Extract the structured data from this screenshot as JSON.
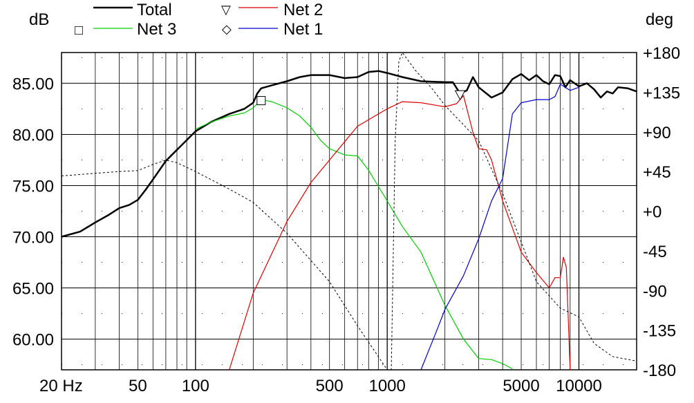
{
  "chart_data": {
    "type": "line",
    "ylabel_left": "dB",
    "ylabel_right": "deg",
    "x_scale": "log",
    "xlim": [
      20,
      20000
    ],
    "ylim_left": [
      57,
      88
    ],
    "ylim_right": [
      -180,
      180
    ],
    "grid": true,
    "legend_position": "top",
    "x_ticks": [
      "20 Hz",
      "50",
      "100",
      "500",
      "1000",
      "5000",
      "10000"
    ],
    "x_tick_values": [
      20,
      50,
      100,
      500,
      1000,
      5000,
      10000
    ],
    "y_ticks_left": [
      "85.00",
      "80.00",
      "75.00",
      "70.00",
      "65.00",
      "60.00"
    ],
    "y_tick_values_left": [
      85,
      80,
      75,
      70,
      65,
      60
    ],
    "y_ticks_right": [
      "+180",
      "+135",
      "+90",
      "+45",
      "+0",
      "-45",
      "-90",
      "-135",
      "-180"
    ],
    "y_tick_values_right": [
      180,
      135,
      90,
      45,
      0,
      -45,
      -90,
      -135,
      -180
    ],
    "series": [
      {
        "name": "Total",
        "axis": "left",
        "color": "#000000",
        "width": 2.5,
        "legend_marker": "",
        "x": [
          20,
          25,
          30,
          35,
          40,
          45,
          50,
          55,
          60,
          70,
          80,
          100,
          120,
          150,
          180,
          200,
          210,
          220,
          250,
          300,
          350,
          400,
          500,
          600,
          700,
          800,
          900,
          1000,
          1200,
          1500,
          2000,
          2200,
          2400,
          2600,
          2800,
          3000,
          3500,
          4000,
          4500,
          5000,
          5500,
          6000,
          6500,
          7000,
          7500,
          8000,
          8500,
          9000,
          10000,
          11000,
          12000,
          13000,
          14000,
          15000,
          16000,
          18000,
          20000
        ],
        "y": [
          70,
          70.5,
          71.4,
          72.1,
          72.8,
          73.1,
          73.6,
          74.6,
          75.6,
          77.4,
          78.5,
          80.3,
          81.2,
          82,
          82.5,
          83.1,
          84,
          84.5,
          84.8,
          85.2,
          85.6,
          85.8,
          85.8,
          85.5,
          85.6,
          86.1,
          86.2,
          86,
          85.6,
          85.2,
          85.1,
          85.1,
          84,
          84.3,
          85.6,
          84.6,
          83.6,
          84.1,
          85.4,
          85.9,
          85.3,
          85.8,
          85.2,
          84.9,
          85.8,
          85.7,
          84.6,
          85.3,
          84.7,
          85,
          84.4,
          83.6,
          84.2,
          84,
          84.6,
          84.5,
          84.2
        ]
      },
      {
        "name": "Net 3",
        "axis": "left",
        "color": "#00cc00",
        "width": 1.2,
        "legend_marker": "square",
        "x": [
          100,
          120,
          150,
          180,
          200,
          220,
          250,
          300,
          350,
          400,
          450,
          500,
          600,
          700,
          800,
          900,
          1000,
          1200,
          1500,
          2000,
          2500,
          3000,
          3500,
          4000,
          4500
        ],
        "y": [
          80.5,
          81.2,
          81.8,
          82.1,
          82.6,
          83.4,
          83.2,
          82.6,
          81.8,
          80.7,
          79.4,
          78.6,
          78,
          77.9,
          76.5,
          74.9,
          73.5,
          71,
          68.5,
          63.3,
          60,
          58.1,
          58,
          57.6,
          57.1
        ]
      },
      {
        "name": "Net 2",
        "axis": "left",
        "color": "#dd0000",
        "width": 1.2,
        "legend_marker": "triangle",
        "x": [
          150,
          200,
          300,
          400,
          500,
          700,
          1000,
          1200,
          1500,
          2000,
          2300,
          2500,
          2800,
          3000,
          3300,
          3500,
          4000,
          5000,
          6000,
          7000,
          7500,
          8000,
          8300,
          8600,
          8800,
          9000
        ],
        "y": [
          57,
          64.5,
          71.5,
          75.3,
          77.5,
          80.8,
          82.5,
          83.2,
          83.1,
          82.7,
          83,
          83.8,
          80.2,
          78.6,
          78.5,
          77.5,
          73.5,
          68.5,
          66.5,
          65,
          66,
          66,
          68,
          67,
          62,
          57
        ]
      },
      {
        "name": "Net 1",
        "axis": "left",
        "color": "#0000cc",
        "width": 1.2,
        "legend_marker": "diamond",
        "x": [
          1500,
          1800,
          2000,
          2500,
          3000,
          3500,
          4000,
          4500,
          5000,
          6000,
          7000,
          7500,
          8000,
          9000,
          10000
        ],
        "y": [
          57,
          60.7,
          62.9,
          66.2,
          69.8,
          73.5,
          75.7,
          82,
          83.1,
          83.4,
          83.4,
          83.7,
          84.9,
          84.3,
          84.6
        ]
      },
      {
        "name": "",
        "axis": "right",
        "color": "#000000",
        "width": 1,
        "dash": "3,3",
        "legend_marker": "",
        "x": [
          20,
          30,
          40,
          50,
          60,
          70,
          80,
          100,
          150,
          200,
          300,
          500,
          700,
          1000,
          1050,
          1100,
          1150,
          1200,
          1400,
          1700,
          2000,
          3000,
          4000,
          6000,
          8000,
          10000,
          12000,
          15000,
          20000
        ],
        "y": [
          40,
          43,
          45,
          46,
          53,
          58,
          55,
          45,
          25,
          10,
          -25,
          -80,
          -130,
          -180,
          -180,
          80,
          170,
          180,
          160,
          140,
          120,
          80,
          20,
          -80,
          -110,
          -120,
          -150,
          -165,
          -170
        ]
      }
    ]
  },
  "legend": {
    "items": [
      "Total",
      "Net 3",
      "Net 2",
      "Net 1"
    ],
    "markers": [
      "",
      "□",
      "▽",
      "◇"
    ]
  }
}
